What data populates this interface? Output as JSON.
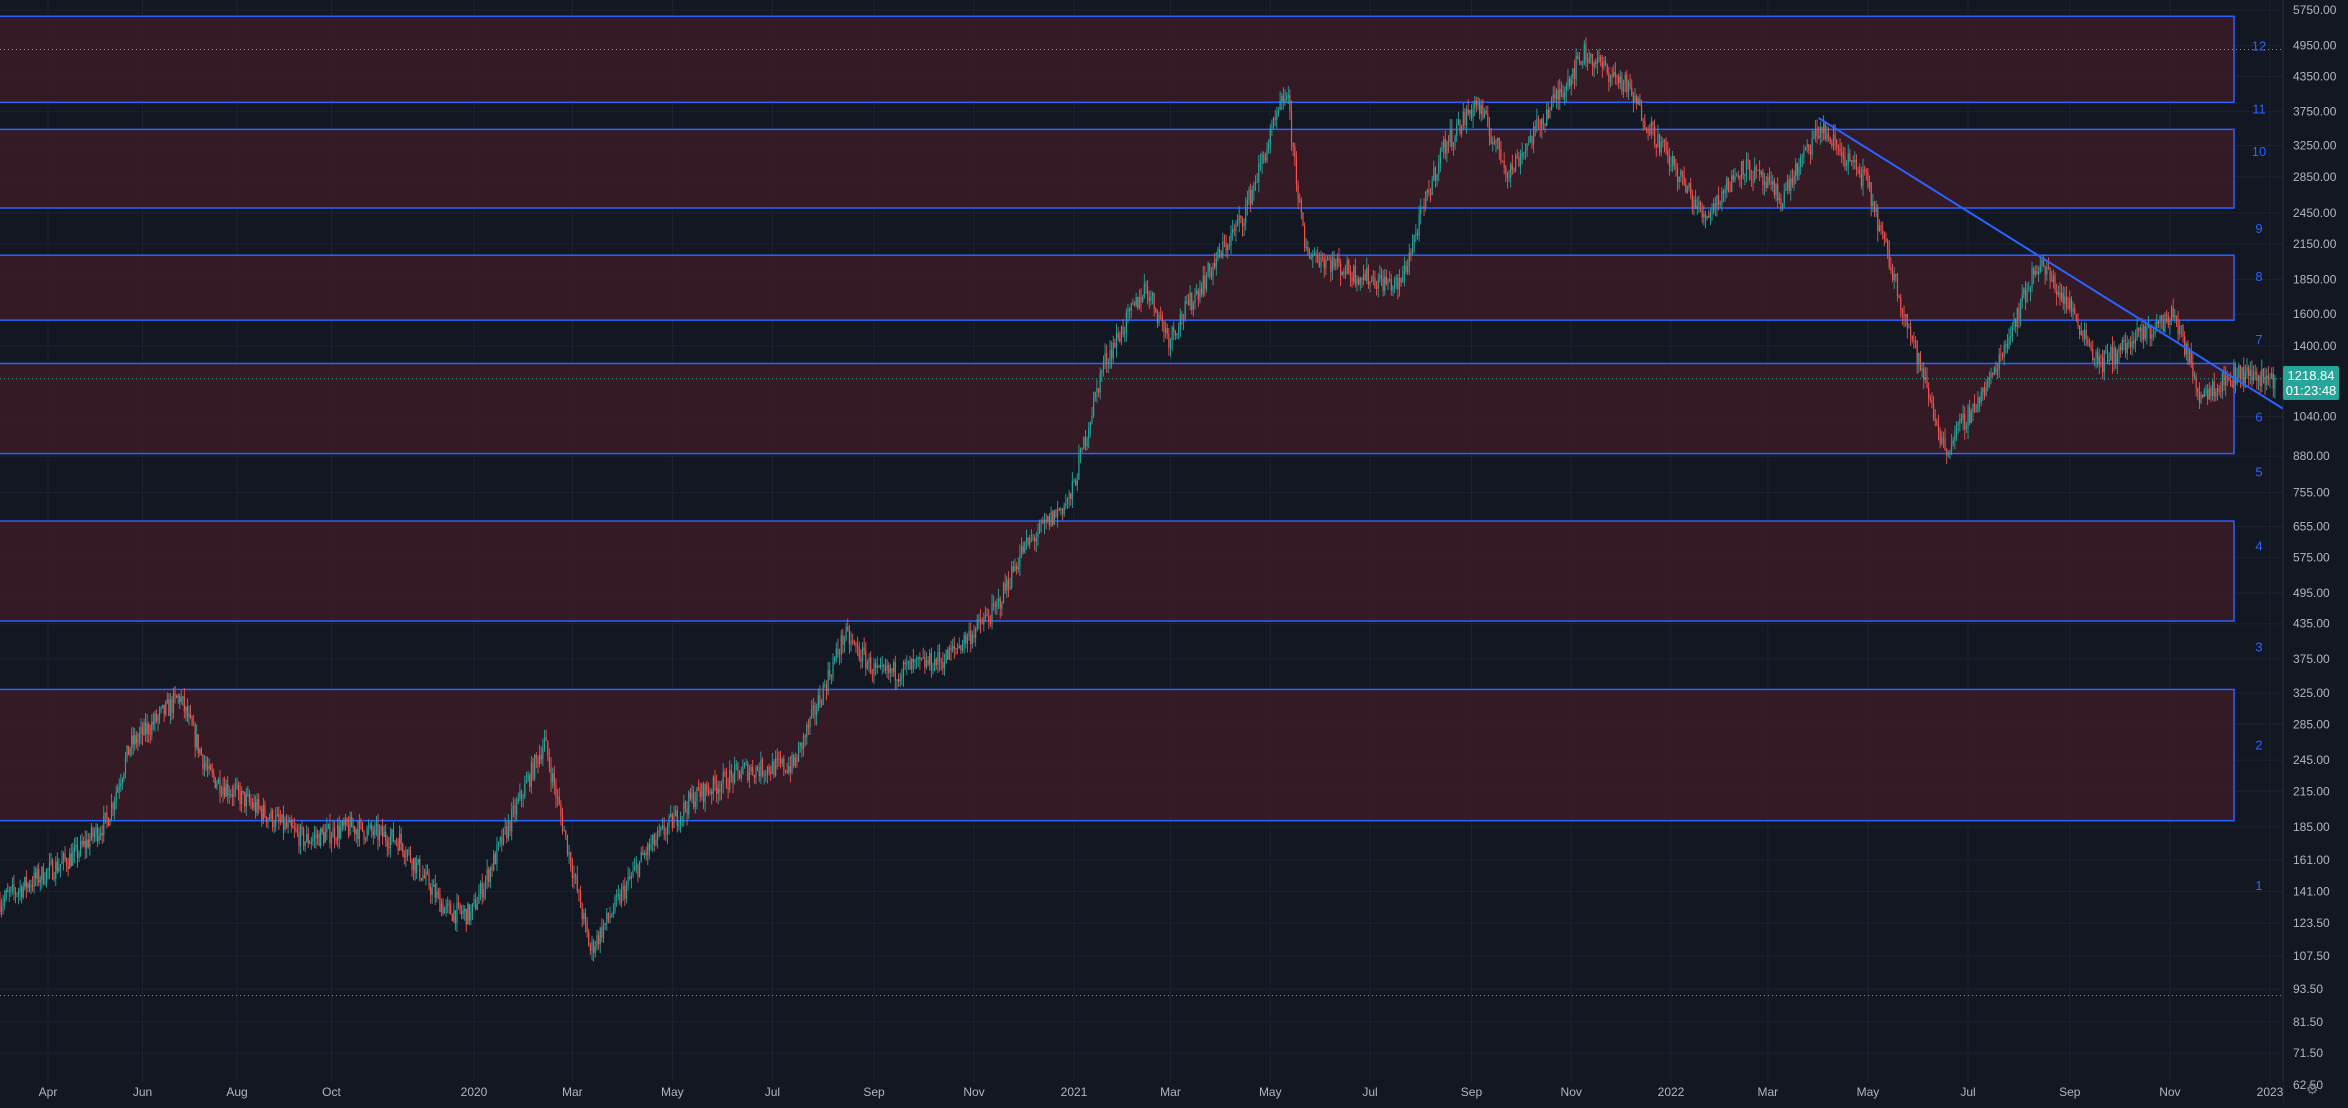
{
  "colors": {
    "background": "#131722",
    "grid": "#1e2230",
    "up": "#26a69a",
    "down": "#ef5350",
    "zone_fill": "#3a1b26",
    "zone_border": "#2962ff",
    "zone_number": "#2962ff",
    "axis_text": "#b2b5be",
    "trendline": "#2962ff",
    "price_tag": "#26a69a"
  },
  "axis": {
    "y_ticks": [
      "5750.00",
      "4950.00",
      "4350.00",
      "3750.00",
      "3250.00",
      "2850.00",
      "2450.00",
      "2150.00",
      "1850.00",
      "1600.00",
      "1400.00",
      "1220.00",
      "1040.00",
      "880.00",
      "755.00",
      "655.00",
      "575.00",
      "495.00",
      "435.00",
      "375.00",
      "325.00",
      "285.00",
      "245.00",
      "215.00",
      "185.00",
      "161.00",
      "141.00",
      "123.50",
      "107.50",
      "93.50",
      "81.50",
      "71.50",
      "62.50"
    ],
    "x_ticks": [
      "Apr",
      "Jun",
      "Aug",
      "Oct",
      "2020",
      "Mar",
      "May",
      "Jul",
      "Sep",
      "Nov",
      "2021",
      "Mar",
      "May",
      "Jul",
      "Sep",
      "Nov",
      "2022",
      "Mar",
      "May",
      "Jul",
      "Sep",
      "Nov",
      "2023"
    ]
  },
  "price_tag": {
    "price": "1218.84",
    "countdown": "01:23:48"
  },
  "zone_labels": [
    "1",
    "2",
    "3",
    "4",
    "5",
    "6",
    "7",
    "8",
    "9",
    "10",
    "11",
    "12"
  ],
  "settings_icon": "gear-icon",
  "chart_data": {
    "type": "candlestick",
    "y_scale": "log",
    "ylim": [
      62.5,
      5750
    ],
    "xlim": [
      "2019-03-01",
      "2023-01-15"
    ],
    "grid": true,
    "zones": [
      {
        "low": 190,
        "high": 330
      },
      {
        "low": 440,
        "high": 670
      },
      {
        "low": 890,
        "high": 1300
      },
      {
        "low": 1560,
        "high": 2050
      },
      {
        "low": 2500,
        "high": 3480
      },
      {
        "low": 3900,
        "high": 5600
      }
    ],
    "horizontal_levels": [
      {
        "price": 4870,
        "style": "dotted"
      },
      {
        "price": 1218.84,
        "style": "dotted"
      },
      {
        "price": 91,
        "style": "dotted"
      }
    ],
    "trendline": {
      "start": {
        "date": "2022-04-01",
        "price": 3650
      },
      "end": {
        "date": "2023-01-10",
        "price": 1070
      }
    },
    "price_path": [
      {
        "date": "2019-03-01",
        "close": 135
      },
      {
        "date": "2019-04-20",
        "close": 165
      },
      {
        "date": "2019-05-10",
        "close": 190
      },
      {
        "date": "2019-05-25",
        "close": 260
      },
      {
        "date": "2019-06-26",
        "close": 320
      },
      {
        "date": "2019-07-15",
        "close": 230
      },
      {
        "date": "2019-08-15",
        "close": 200
      },
      {
        "date": "2019-09-15",
        "close": 175
      },
      {
        "date": "2019-10-15",
        "close": 185
      },
      {
        "date": "2019-11-15",
        "close": 175
      },
      {
        "date": "2019-12-15",
        "close": 130
      },
      {
        "date": "2019-12-31",
        "close": 128
      },
      {
        "date": "2020-02-14",
        "close": 265
      },
      {
        "date": "2020-03-13",
        "close": 110
      },
      {
        "date": "2020-04-15",
        "close": 165
      },
      {
        "date": "2020-05-15",
        "close": 210
      },
      {
        "date": "2020-06-15",
        "close": 235
      },
      {
        "date": "2020-07-15",
        "close": 240
      },
      {
        "date": "2020-08-15",
        "close": 415
      },
      {
        "date": "2020-09-05",
        "close": 350
      },
      {
        "date": "2020-10-15",
        "close": 375
      },
      {
        "date": "2020-11-15",
        "close": 460
      },
      {
        "date": "2020-12-01",
        "close": 590
      },
      {
        "date": "2020-12-31",
        "close": 740
      },
      {
        "date": "2021-01-20",
        "close": 1300
      },
      {
        "date": "2021-02-15",
        "close": 1800
      },
      {
        "date": "2021-03-01",
        "close": 1450
      },
      {
        "date": "2021-04-15",
        "close": 2400
      },
      {
        "date": "2021-05-12",
        "close": 4100
      },
      {
        "date": "2021-05-23",
        "close": 2100
      },
      {
        "date": "2021-06-22",
        "close": 1900
      },
      {
        "date": "2021-07-20",
        "close": 1800
      },
      {
        "date": "2021-08-15",
        "close": 3200
      },
      {
        "date": "2021-09-05",
        "close": 3900
      },
      {
        "date": "2021-09-25",
        "close": 2900
      },
      {
        "date": "2021-11-10",
        "close": 4800
      },
      {
        "date": "2021-12-05",
        "close": 4200
      },
      {
        "date": "2022-01-22",
        "close": 2400
      },
      {
        "date": "2022-02-15",
        "close": 3000
      },
      {
        "date": "2022-03-10",
        "close": 2600
      },
      {
        "date": "2022-04-03",
        "close": 3500
      },
      {
        "date": "2022-05-01",
        "close": 2800
      },
      {
        "date": "2022-05-15",
        "close": 2000
      },
      {
        "date": "2022-06-18",
        "close": 900
      },
      {
        "date": "2022-07-15",
        "close": 1200
      },
      {
        "date": "2022-08-14",
        "close": 2000
      },
      {
        "date": "2022-09-05",
        "close": 1600
      },
      {
        "date": "2022-09-20",
        "close": 1300
      },
      {
        "date": "2022-11-05",
        "close": 1600
      },
      {
        "date": "2022-11-20",
        "close": 1150
      },
      {
        "date": "2022-12-15",
        "close": 1250
      },
      {
        "date": "2023-01-05",
        "close": 1218.84
      }
    ]
  }
}
